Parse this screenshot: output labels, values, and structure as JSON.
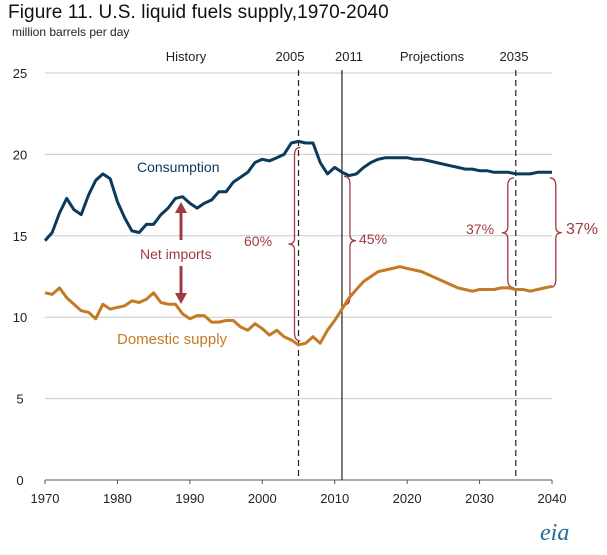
{
  "header": {
    "title": "Figure 11. U.S. liquid fuels supply,1970-2040",
    "subtitle": "million barrels per day"
  },
  "logo": {
    "text": "eia"
  },
  "annotations": {
    "history": "History",
    "projections": "Projections",
    "y2005": "2005",
    "y2011": "2011",
    "y2035": "2035",
    "consumption": "Consumption",
    "domestic": "Domestic supply",
    "net_imports": "Net imports",
    "pct_2005": "60%",
    "pct_2011": "45%",
    "pct_2035a": "37%",
    "pct_2035b": "37%"
  },
  "colors": {
    "consumption": "#0b3b5c",
    "domestic": "#c47a24",
    "net_imports": "#a03a43",
    "grid": "#c8c8c8"
  },
  "chart_data": {
    "type": "line",
    "title": "Figure 11. U.S. liquid fuels supply,1970-2040",
    "ylabel": "million barrels per day",
    "xlim": [
      1970,
      2040
    ],
    "ylim": [
      0,
      25
    ],
    "x_ticks": [
      "1970",
      "1980",
      "1990",
      "2000",
      "2010",
      "2020",
      "2030",
      "2040"
    ],
    "y_ticks": [
      "0",
      "5",
      "10",
      "15",
      "20",
      "25"
    ],
    "grid": "horizontal",
    "reference_lines": [
      {
        "x": 2005,
        "style": "dashed"
      },
      {
        "x": 2011,
        "style": "solid"
      },
      {
        "x": 2035,
        "style": "dashed"
      }
    ],
    "series": [
      {
        "name": "Consumption",
        "x": [
          1970,
          1971,
          1972,
          1973,
          1974,
          1975,
          1976,
          1977,
          1978,
          1979,
          1980,
          1981,
          1982,
          1983,
          1984,
          1985,
          1986,
          1987,
          1988,
          1989,
          1990,
          1991,
          1992,
          1993,
          1994,
          1995,
          1996,
          1997,
          1998,
          1999,
          2000,
          2001,
          2002,
          2003,
          2004,
          2005,
          2006,
          2007,
          2008,
          2009,
          2010,
          2011,
          2012,
          2013,
          2014,
          2015,
          2016,
          2017,
          2018,
          2019,
          2020,
          2021,
          2022,
          2023,
          2024,
          2025,
          2026,
          2027,
          2028,
          2029,
          2030,
          2031,
          2032,
          2033,
          2034,
          2035,
          2036,
          2037,
          2038,
          2039,
          2040
        ],
        "values": [
          14.7,
          15.2,
          16.4,
          17.3,
          16.6,
          16.3,
          17.5,
          18.4,
          18.8,
          18.5,
          17.1,
          16.1,
          15.3,
          15.2,
          15.7,
          15.7,
          16.3,
          16.7,
          17.3,
          17.4,
          17.0,
          16.7,
          17.0,
          17.2,
          17.7,
          17.7,
          18.3,
          18.6,
          18.9,
          19.5,
          19.7,
          19.6,
          19.8,
          20.0,
          20.7,
          20.8,
          20.7,
          20.7,
          19.5,
          18.8,
          19.2,
          18.9,
          18.7,
          18.8,
          19.2,
          19.5,
          19.7,
          19.8,
          19.8,
          19.8,
          19.8,
          19.7,
          19.7,
          19.6,
          19.5,
          19.4,
          19.3,
          19.2,
          19.1,
          19.1,
          19.0,
          19.0,
          18.9,
          18.9,
          18.9,
          18.8,
          18.8,
          18.8,
          18.9,
          18.9,
          18.9
        ]
      },
      {
        "name": "Domestic supply",
        "x": [
          1970,
          1971,
          1972,
          1973,
          1974,
          1975,
          1976,
          1977,
          1978,
          1979,
          1980,
          1981,
          1982,
          1983,
          1984,
          1985,
          1986,
          1987,
          1988,
          1989,
          1990,
          1991,
          1992,
          1993,
          1994,
          1995,
          1996,
          1997,
          1998,
          1999,
          2000,
          2001,
          2002,
          2003,
          2004,
          2005,
          2006,
          2007,
          2008,
          2009,
          2010,
          2011,
          2012,
          2013,
          2014,
          2015,
          2016,
          2017,
          2018,
          2019,
          2020,
          2021,
          2022,
          2023,
          2024,
          2025,
          2026,
          2027,
          2028,
          2029,
          2030,
          2031,
          2032,
          2033,
          2034,
          2035,
          2036,
          2037,
          2038,
          2039,
          2040
        ],
        "values": [
          11.5,
          11.4,
          11.8,
          11.2,
          10.8,
          10.4,
          10.3,
          9.9,
          10.8,
          10.5,
          10.6,
          10.7,
          11.0,
          10.9,
          11.1,
          11.5,
          10.9,
          10.8,
          10.8,
          10.2,
          9.9,
          10.1,
          10.1,
          9.7,
          9.7,
          9.8,
          9.8,
          9.4,
          9.2,
          9.6,
          9.3,
          8.9,
          9.2,
          8.8,
          8.6,
          8.3,
          8.4,
          8.8,
          8.4,
          9.2,
          9.8,
          10.5,
          11.2,
          11.7,
          12.2,
          12.5,
          12.8,
          12.9,
          13.0,
          13.1,
          13.0,
          12.9,
          12.8,
          12.6,
          12.4,
          12.2,
          12.0,
          11.8,
          11.7,
          11.6,
          11.7,
          11.7,
          11.7,
          11.8,
          11.8,
          11.7,
          11.7,
          11.6,
          11.7,
          11.8,
          11.9
        ]
      }
    ]
  }
}
